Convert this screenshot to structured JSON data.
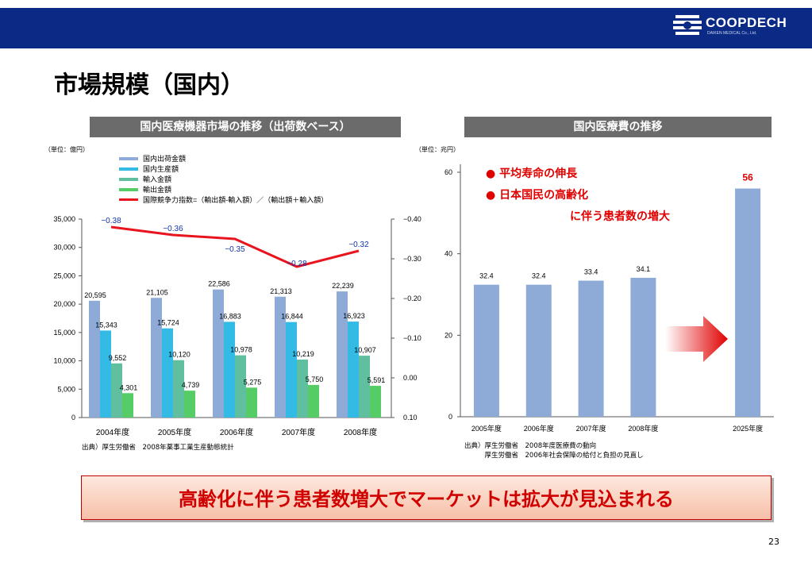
{
  "header": {
    "brand": "COOPDECH",
    "brand_sub": "DAIKEN MEDICAL Co., Ltd.",
    "bar_color": "#0b2a86"
  },
  "page_title": "市場規模（国内）",
  "left_panel": {
    "title": "国内医療機器市場の推移（出荷数ベース）",
    "unit": "（単位：億円）",
    "source": "出典）厚生労働省　2008年薬事工業生産動態統計"
  },
  "right_panel": {
    "title": "国内医療費の推移",
    "unit": "（単位：兆円）",
    "source": "出典）厚生労働省　2008年度医療費の動向\n　　　厚生労働省　2006年社会保障の給付と負担の見直し",
    "bullets": [
      "● 平均寿命の伸長",
      "● 日本国民の高齢化",
      "に伴う患者数の増大"
    ]
  },
  "chart_data": [
    {
      "type": "bar",
      "categories": [
        "2004年度",
        "2005年度",
        "2006年度",
        "2007年度",
        "2008年度"
      ],
      "series": [
        {
          "name": "国内出荷金額",
          "values": [
            20595,
            21105,
            22586,
            21313,
            22239
          ],
          "labels": [
            "20,595",
            "21,105",
            "22,586",
            "21,313",
            "22,239"
          ],
          "color": "#8eaad6"
        },
        {
          "name": "国内生産額",
          "values": [
            15343,
            15724,
            16883,
            16844,
            16923
          ],
          "labels": [
            "15,343",
            "15,724",
            "16,883",
            "16,844",
            "16,923"
          ],
          "color": "#33bbe6"
        },
        {
          "name": "輸入金額",
          "values": [
            9552,
            10120,
            10978,
            10219,
            10907
          ],
          "labels": [
            "9,552",
            "10,120",
            "10,978",
            "10,219",
            "10,907"
          ],
          "color": "#5fbf9f"
        },
        {
          "name": "輸出金額",
          "values": [
            4301,
            4739,
            5275,
            5750,
            5591
          ],
          "labels": [
            "4,301",
            "4,739",
            "5,275",
            "5,750",
            "5,591"
          ],
          "color": "#55cc66"
        }
      ],
      "line_series": {
        "name": "国際競争力指数=（輸出額-輸入額）／（輸出額＋輸入額）",
        "values": [
          -0.38,
          -0.36,
          -0.35,
          -0.28,
          -0.32
        ],
        "labels": [
          "−0.38",
          "−0.36",
          "−0.35",
          "−0.28",
          "−0.32"
        ],
        "color": "#e8141e",
        "label_color": "#1133aa"
      },
      "ylim": [
        0,
        35000
      ],
      "y_ticks": [
        "0",
        "5,000",
        "10,000",
        "15,000",
        "20,000",
        "25,000",
        "30,000",
        "35,000"
      ],
      "y2lim": [
        0.1,
        -0.4
      ],
      "y2_ticks": [
        "0.10",
        "0.00",
        "−0.10",
        "−0.20",
        "−0.30",
        "−0.40"
      ],
      "legend_position": "top-left"
    },
    {
      "type": "bar",
      "categories": [
        "2005年度",
        "2006年度",
        "2007年度",
        "2008年度",
        "",
        "2025年度"
      ],
      "values": [
        32.4,
        32.4,
        33.4,
        34.1,
        null,
        56
      ],
      "labels": [
        "32.4",
        "32.4",
        "33.4",
        "34.1",
        "",
        "56"
      ],
      "ylim": [
        0,
        60
      ],
      "y_ticks": [
        "0",
        "20",
        "40",
        "60"
      ],
      "bar_color": "#8eaad6",
      "highlight_color": "#e00000"
    }
  ],
  "banner": "高齢化に伴う患者数増大でマーケットは拡大が見込まれる",
  "page_number": "23"
}
